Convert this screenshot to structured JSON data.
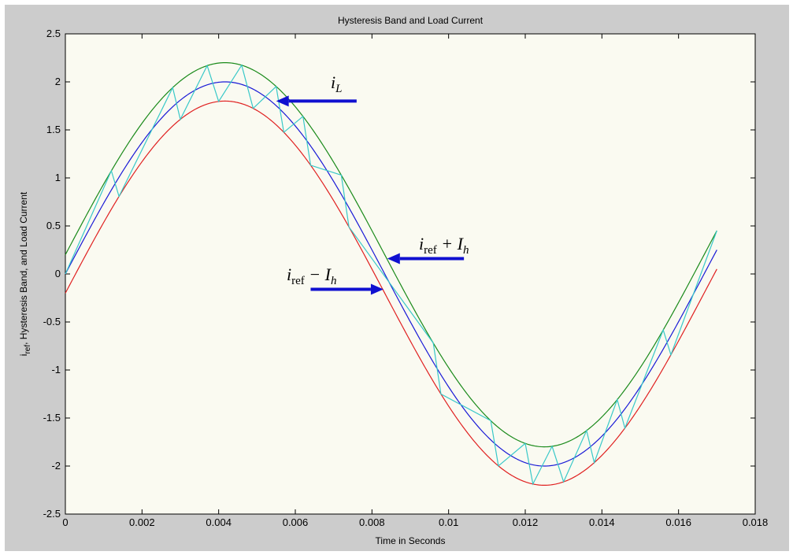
{
  "chart_data": {
    "type": "line",
    "title": "Hysteresis Band and Load Current",
    "xlabel": "Time in Seconds",
    "ylabel_main": "i",
    "ylabel_sub": "ref",
    "ylabel_rest": ", Hysteresis Band, and Load Current",
    "xlim": [
      0,
      0.018
    ],
    "ylim": [
      -2.5,
      2.5
    ],
    "x_ticks": [
      "0",
      "0.002",
      "0.004",
      "0.006",
      "0.008",
      "0.01",
      "0.012",
      "0.014",
      "0.016",
      "0.018"
    ],
    "y_ticks": [
      "2.5",
      "2",
      "1.5",
      "1",
      "0.5",
      "0",
      "-0.5",
      "-1",
      "-1.5",
      "-2",
      "-2.5"
    ],
    "grid": false,
    "series": [
      {
        "color": "#1a1ad6",
        "amplitude": 2.0,
        "offset": 0.0,
        "frequency_hz": 60,
        "t_start": 0,
        "t_end": 0.017
      },
      {
        "color": "#1a8a1a",
        "amplitude": 2.0,
        "offset": 0.2,
        "frequency_hz": 60,
        "t_start": 0,
        "t_end": 0.017
      },
      {
        "color": "#e02020",
        "amplitude": 2.0,
        "offset": -0.2,
        "frequency_hz": 60,
        "t_start": 0,
        "t_end": 0.017
      },
      {
        "color": "#38c8c8",
        "kind": "hysteresis",
        "band": 0.2,
        "t_start": 0,
        "t_end": 0.017,
        "switch_times": [
          0,
          0.0012,
          0.0014,
          0.0028,
          0.003,
          0.0037,
          0.004,
          0.0046,
          0.0049,
          0.0055,
          0.0057,
          0.0062,
          0.0064,
          0.0072,
          0.0074,
          0.0096,
          0.0098,
          0.0111,
          0.0113,
          0.012,
          0.0122,
          0.0127,
          0.013,
          0.0136,
          0.0138,
          0.0144,
          0.0146,
          0.0156,
          0.0158,
          0.017
        ]
      }
    ],
    "annotations": [
      {
        "main": "i",
        "sub": "L",
        "rest": "",
        "arrow_from": [
          0.0076,
          1.8
        ],
        "arrow_to": [
          0.0055,
          1.8
        ]
      },
      {
        "main": "i",
        "sub": "ref",
        "rest": " + I",
        "rest_sub": "h",
        "arrow_from": [
          0.0104,
          0.16
        ],
        "arrow_to": [
          0.0084,
          0.16
        ]
      },
      {
        "main": "i",
        "sub": "ref",
        "rest": " − I",
        "rest_sub": "h",
        "arrow_from": [
          0.0064,
          -0.16
        ],
        "arrow_to": [
          0.0083,
          -0.16
        ]
      }
    ]
  }
}
